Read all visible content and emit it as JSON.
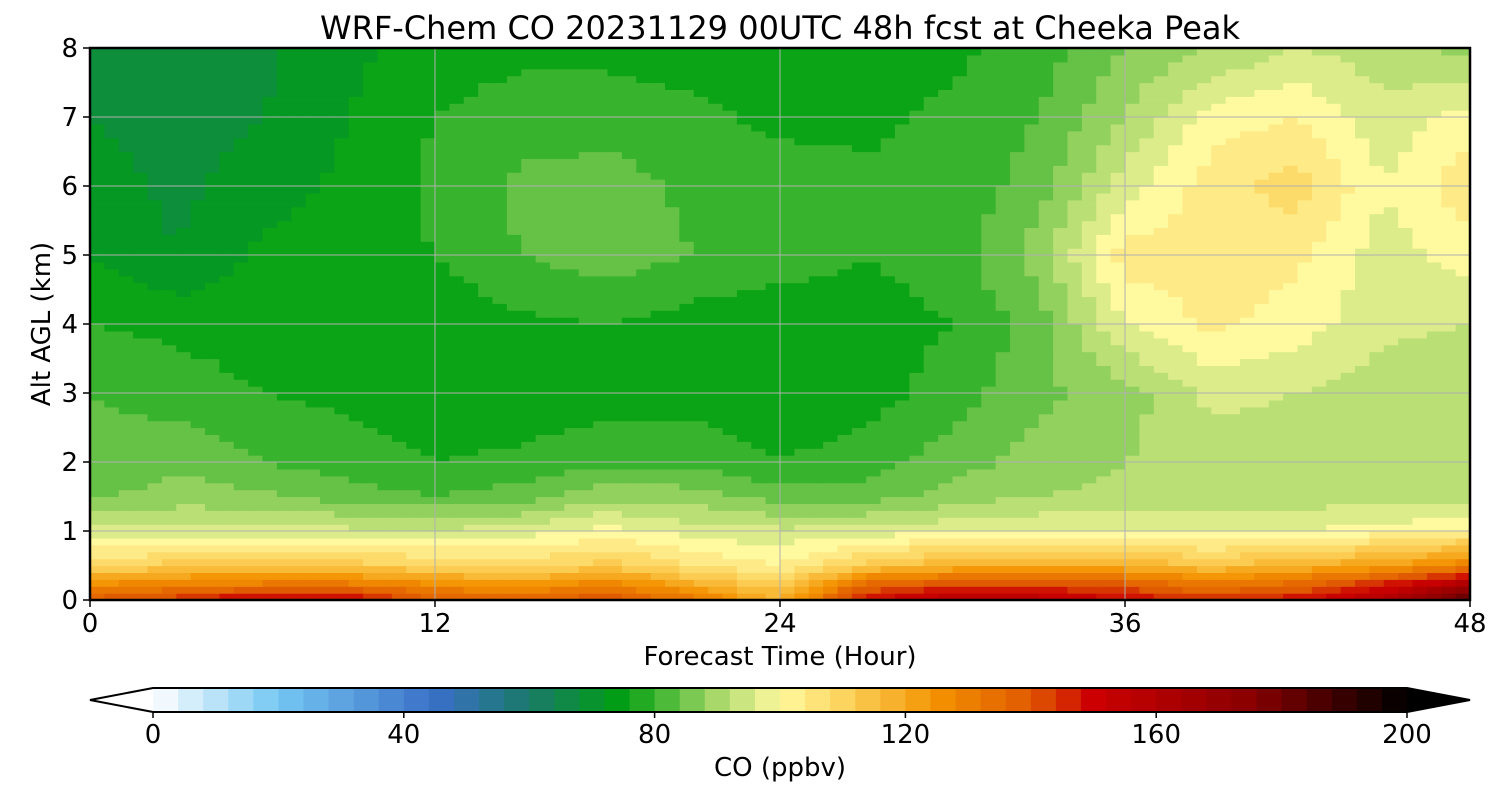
{
  "chart_data": {
    "type": "heatmap",
    "title": "WRF-Chem CO  20231129 00UTC 48h fcst at Cheeka Peak",
    "xlabel": "Forecast Time (Hour)",
    "ylabel": "Alt AGL (km)",
    "xlim": [
      0,
      48
    ],
    "ylim": [
      0,
      8
    ],
    "x_ticks": [
      0,
      12,
      24,
      36,
      48
    ],
    "x_tick_labels": [
      "0",
      "12",
      "24",
      "36",
      "48"
    ],
    "y_ticks": [
      0,
      1,
      2,
      3,
      4,
      5,
      6,
      7,
      8
    ],
    "y_tick_labels": [
      "0",
      "1",
      "2",
      "3",
      "4",
      "5",
      "6",
      "7",
      "8"
    ],
    "grid": true,
    "x": [
      0,
      3,
      6,
      9,
      12,
      15,
      18,
      21,
      24,
      27,
      30,
      33,
      36,
      39,
      42,
      45,
      48
    ],
    "y": [
      0,
      0.25,
      0.5,
      1,
      1.5,
      2,
      3,
      4,
      5,
      6,
      7,
      8
    ],
    "z": [
      [
        140,
        145,
        155,
        152,
        140,
        138,
        142,
        132,
        118,
        150,
        160,
        158,
        150,
        145,
        150,
        160,
        190
      ],
      [
        125,
        128,
        130,
        130,
        125,
        122,
        128,
        118,
        110,
        135,
        140,
        140,
        138,
        130,
        135,
        145,
        160
      ],
      [
        108,
        112,
        115,
        112,
        110,
        108,
        112,
        106,
        102,
        112,
        118,
        118,
        118,
        114,
        118,
        122,
        130
      ],
      [
        96,
        95,
        96,
        95,
        95,
        96,
        100,
        96,
        95,
        96,
        97,
        98,
        98,
        97,
        98,
        100,
        102
      ],
      [
        85,
        88,
        87,
        84,
        82,
        84,
        89,
        88,
        84,
        84,
        88,
        90,
        91,
        91,
        92,
        92,
        92
      ],
      [
        83,
        85,
        82,
        80,
        78,
        79,
        81,
        81,
        78,
        80,
        84,
        88,
        90,
        92,
        92,
        91,
        90
      ],
      [
        82,
        80,
        78,
        77,
        75,
        75,
        76,
        76,
        75,
        76,
        80,
        85,
        88,
        95,
        94,
        92,
        90
      ],
      [
        78,
        77,
        76,
        75,
        75,
        77,
        78,
        76,
        75,
        76,
        78,
        84,
        98,
        103,
        100,
        95,
        94
      ],
      [
        74,
        70,
        75,
        76,
        78,
        82,
        84,
        82,
        80,
        78,
        80,
        88,
        104,
        104,
        103,
        96,
        100
      ],
      [
        72,
        69,
        72,
        75,
        79,
        83,
        84,
        81,
        80,
        79,
        79,
        84,
        96,
        104,
        108,
        98,
        105
      ],
      [
        70,
        68,
        70,
        74,
        78,
        80,
        80,
        79,
        77,
        77,
        79,
        82,
        90,
        100,
        102,
        95,
        100
      ],
      [
        66,
        67,
        69,
        73,
        76,
        77,
        77,
        76,
        74,
        75,
        77,
        80,
        86,
        90,
        94,
        92,
        88
      ]
    ],
    "colorbar": {
      "label": "CO  (ppbv)",
      "min": 0,
      "max": 200,
      "ticks": [
        0,
        40,
        80,
        120,
        160,
        200
      ],
      "tick_labels": [
        "0",
        "40",
        "80",
        "120",
        "160",
        "200"
      ],
      "extend": "both",
      "colormap_stops": [
        {
          "v": 0,
          "c": "#ffffff"
        },
        {
          "v": 20,
          "c": "#74c7f3"
        },
        {
          "v": 45,
          "c": "#3a6fc7"
        },
        {
          "v": 60,
          "c": "#1a7a6a"
        },
        {
          "v": 75,
          "c": "#00a010"
        },
        {
          "v": 90,
          "c": "#a8d86a"
        },
        {
          "v": 100,
          "c": "#fff9a0"
        },
        {
          "v": 110,
          "c": "#fdd45e"
        },
        {
          "v": 125,
          "c": "#f39200"
        },
        {
          "v": 140,
          "c": "#e05a00"
        },
        {
          "v": 150,
          "c": "#cc0000"
        },
        {
          "v": 175,
          "c": "#8a0000"
        },
        {
          "v": 200,
          "c": "#000000"
        }
      ]
    }
  }
}
